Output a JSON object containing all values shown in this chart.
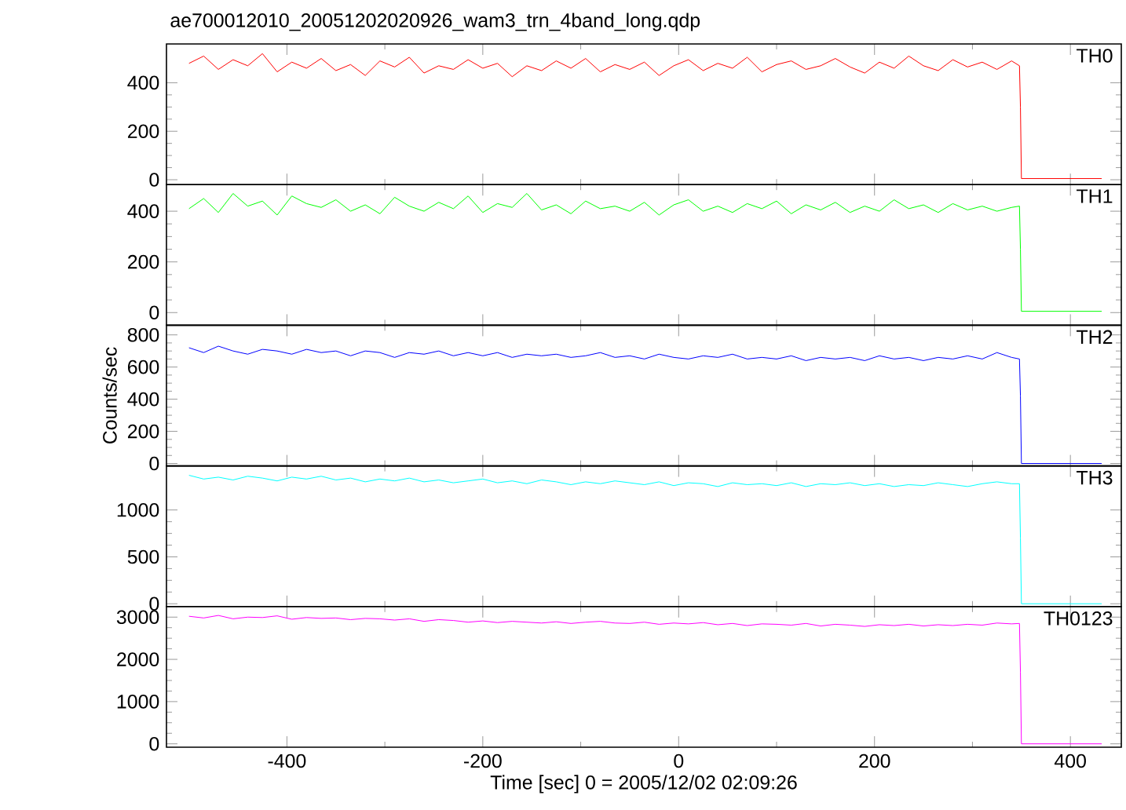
{
  "chart_data": [
    {
      "type": "line",
      "title": "ae700012010_20051202020926_wam3_trn_4band_long.qdp",
      "x": [
        -500,
        -485,
        -470,
        -455,
        -440,
        -425,
        -410,
        -395,
        -380,
        -365,
        -350,
        -335,
        -320,
        -305,
        -290,
        -275,
        -260,
        -245,
        -230,
        -215,
        -200,
        -185,
        -170,
        -155,
        -140,
        -125,
        -110,
        -95,
        -80,
        -65,
        -50,
        -35,
        -20,
        -5,
        10,
        25,
        40,
        55,
        70,
        85,
        100,
        115,
        130,
        145,
        160,
        175,
        190,
        205,
        220,
        235,
        250,
        265,
        280,
        295,
        310,
        325,
        340,
        348,
        349,
        350,
        432
      ],
      "series": [
        {
          "name": "TH0",
          "color": "#ff0000",
          "values": [
            480,
            510,
            455,
            495,
            470,
            520,
            445,
            485,
            460,
            500,
            450,
            475,
            430,
            490,
            465,
            505,
            440,
            470,
            455,
            495,
            460,
            480,
            425,
            470,
            450,
            490,
            460,
            500,
            445,
            475,
            455,
            485,
            430,
            470,
            495,
            450,
            480,
            460,
            505,
            445,
            475,
            490,
            455,
            470,
            500,
            465,
            440,
            485,
            460,
            510,
            470,
            450,
            495,
            465,
            485,
            455,
            490,
            470,
            300,
            5,
            5
          ]
        }
      ],
      "xlim": [
        -523,
        452
      ],
      "xticks": [
        -400,
        -200,
        0,
        200,
        400
      ],
      "ylim": [
        -20,
        560
      ],
      "yticks": [
        0,
        200,
        400
      ],
      "tick_labels": "y"
    },
    {
      "type": "line",
      "x": [
        -500,
        -485,
        -470,
        -455,
        -440,
        -425,
        -410,
        -395,
        -380,
        -365,
        -350,
        -335,
        -320,
        -305,
        -290,
        -275,
        -260,
        -245,
        -230,
        -215,
        -200,
        -185,
        -170,
        -155,
        -140,
        -125,
        -110,
        -95,
        -80,
        -65,
        -50,
        -35,
        -20,
        -5,
        10,
        25,
        40,
        55,
        70,
        85,
        100,
        115,
        130,
        145,
        160,
        175,
        190,
        205,
        220,
        235,
        250,
        265,
        280,
        295,
        310,
        325,
        340,
        348,
        349,
        350,
        432
      ],
      "series": [
        {
          "name": "TH1",
          "color": "#00ff00",
          "values": [
            410,
            450,
            395,
            470,
            420,
            440,
            385,
            460,
            430,
            415,
            445,
            400,
            425,
            390,
            455,
            420,
            400,
            435,
            410,
            460,
            395,
            430,
            415,
            470,
            405,
            425,
            390,
            440,
            410,
            420,
            400,
            435,
            385,
            425,
            445,
            400,
            420,
            395,
            430,
            410,
            440,
            390,
            425,
            405,
            435,
            395,
            420,
            400,
            445,
            410,
            425,
            395,
            430,
            405,
            420,
            400,
            415,
            420,
            250,
            5,
            5
          ]
        }
      ],
      "xlim": [
        -523,
        452
      ],
      "xticks": [
        -400,
        -200,
        0,
        200,
        400
      ],
      "ylim": [
        -50,
        505
      ],
      "yticks": [
        0,
        200,
        400
      ],
      "tick_labels": "y"
    },
    {
      "type": "line",
      "ylabel": "Counts/sec",
      "x": [
        -500,
        -485,
        -470,
        -455,
        -440,
        -425,
        -410,
        -395,
        -380,
        -365,
        -350,
        -335,
        -320,
        -305,
        -290,
        -275,
        -260,
        -245,
        -230,
        -215,
        -200,
        -185,
        -170,
        -155,
        -140,
        -125,
        -110,
        -95,
        -80,
        -65,
        -50,
        -35,
        -20,
        -5,
        10,
        25,
        40,
        55,
        70,
        85,
        100,
        115,
        130,
        145,
        160,
        175,
        190,
        205,
        220,
        235,
        250,
        265,
        280,
        295,
        310,
        325,
        340,
        348,
        349,
        350,
        432
      ],
      "series": [
        {
          "name": "TH2",
          "color": "#0000ff",
          "values": [
            720,
            690,
            730,
            700,
            680,
            710,
            700,
            680,
            710,
            690,
            700,
            670,
            700,
            690,
            660,
            690,
            680,
            700,
            670,
            690,
            670,
            690,
            660,
            680,
            670,
            680,
            660,
            670,
            690,
            660,
            670,
            650,
            680,
            660,
            650,
            670,
            660,
            680,
            650,
            660,
            650,
            670,
            640,
            660,
            650,
            660,
            640,
            670,
            650,
            660,
            640,
            660,
            650,
            670,
            650,
            690,
            660,
            650,
            420,
            0,
            0
          ]
        }
      ],
      "xlim": [
        -523,
        452
      ],
      "xticks": [
        -400,
        -200,
        0,
        200,
        400
      ],
      "ylim": [
        -15,
        860
      ],
      "yticks": [
        0,
        200,
        400,
        600,
        800
      ],
      "tick_labels": "y"
    },
    {
      "type": "line",
      "x": [
        -500,
        -485,
        -470,
        -455,
        -440,
        -425,
        -410,
        -395,
        -380,
        -365,
        -350,
        -335,
        -320,
        -305,
        -290,
        -275,
        -260,
        -245,
        -230,
        -215,
        -200,
        -185,
        -170,
        -155,
        -140,
        -125,
        -110,
        -95,
        -80,
        -65,
        -50,
        -35,
        -20,
        -5,
        10,
        25,
        40,
        55,
        70,
        85,
        100,
        115,
        130,
        145,
        160,
        175,
        190,
        205,
        220,
        235,
        250,
        265,
        280,
        295,
        310,
        325,
        340,
        348,
        349,
        350,
        432
      ],
      "series": [
        {
          "name": "TH3",
          "color": "#00ffff",
          "values": [
            1370,
            1330,
            1350,
            1320,
            1360,
            1340,
            1310,
            1350,
            1330,
            1360,
            1320,
            1340,
            1300,
            1330,
            1310,
            1340,
            1300,
            1320,
            1290,
            1310,
            1330,
            1290,
            1310,
            1280,
            1320,
            1300,
            1270,
            1300,
            1280,
            1310,
            1290,
            1270,
            1300,
            1260,
            1290,
            1280,
            1250,
            1290,
            1270,
            1280,
            1260,
            1290,
            1250,
            1280,
            1270,
            1290,
            1260,
            1280,
            1250,
            1270,
            1260,
            1290,
            1270,
            1250,
            1280,
            1300,
            1280,
            1280,
            700,
            0,
            0
          ]
        }
      ],
      "xlim": [
        -523,
        452
      ],
      "xticks": [
        -400,
        -200,
        0,
        200,
        400
      ],
      "ylim": [
        -30,
        1470
      ],
      "yticks": [
        0,
        500,
        1000
      ],
      "tick_labels": "y"
    },
    {
      "type": "line",
      "xlabel": "Time [sec] 0 = 2005/12/02 02:09:26",
      "x": [
        -500,
        -485,
        -470,
        -455,
        -440,
        -425,
        -410,
        -395,
        -380,
        -365,
        -350,
        -335,
        -320,
        -305,
        -290,
        -275,
        -260,
        -245,
        -230,
        -215,
        -200,
        -185,
        -170,
        -155,
        -140,
        -125,
        -110,
        -95,
        -80,
        -65,
        -50,
        -35,
        -20,
        -5,
        10,
        25,
        40,
        55,
        70,
        85,
        100,
        115,
        130,
        145,
        160,
        175,
        190,
        205,
        220,
        235,
        250,
        265,
        280,
        295,
        310,
        325,
        340,
        348,
        349,
        350,
        432
      ],
      "series": [
        {
          "name": "TH0123",
          "color": "#ff00ff",
          "values": [
            3020,
            2980,
            3040,
            2960,
            3000,
            2990,
            3030,
            2950,
            2990,
            2970,
            2980,
            2940,
            2970,
            2960,
            2930,
            2960,
            2900,
            2940,
            2920,
            2880,
            2910,
            2870,
            2900,
            2880,
            2860,
            2890,
            2850,
            2880,
            2900,
            2860,
            2850,
            2880,
            2830,
            2860,
            2840,
            2870,
            2820,
            2850,
            2800,
            2840,
            2830,
            2810,
            2850,
            2790,
            2830,
            2810,
            2780,
            2820,
            2800,
            2830,
            2790,
            2820,
            2800,
            2830,
            2810,
            2860,
            2840,
            2850,
            1700,
            0,
            0
          ]
        }
      ],
      "xlim": [
        -523,
        452
      ],
      "xticks": [
        -400,
        -200,
        0,
        200,
        400
      ],
      "ylim": [
        -80,
        3250
      ],
      "yticks": [
        0,
        1000,
        2000,
        3000
      ]
    }
  ]
}
